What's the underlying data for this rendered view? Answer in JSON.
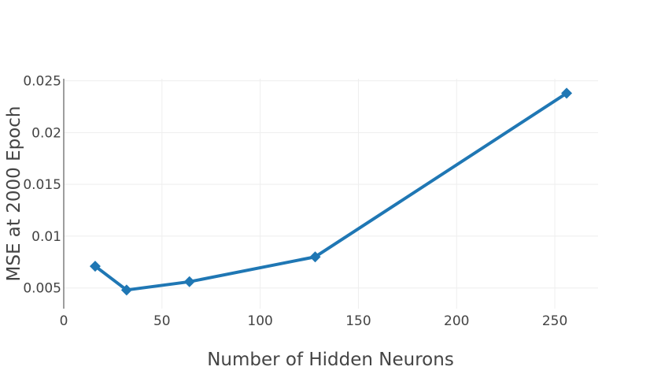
{
  "chart_data": {
    "type": "line",
    "title": "",
    "xlabel": "Number of Hidden Neurons",
    "ylabel": "MSE at 2000 Epoch",
    "xlim": [
      0,
      272
    ],
    "ylim": [
      0.003,
      0.0252
    ],
    "xticks": [
      0,
      50,
      100,
      150,
      200,
      250
    ],
    "xtick_labels": [
      "0",
      "50",
      "100",
      "150",
      "200",
      "250"
    ],
    "yticks": [
      0.005,
      0.01,
      0.015,
      0.02,
      0.025
    ],
    "ytick_labels": [
      "0.005",
      "0.01",
      "0.015",
      "0.02",
      "0.025"
    ],
    "grid": true,
    "series": [
      {
        "x": [
          16,
          32,
          64,
          128,
          256
        ],
        "y": [
          0.0071,
          0.0048,
          0.0056,
          0.008,
          0.0238
        ],
        "color": "#1f77b4",
        "marker": "diamond"
      }
    ]
  }
}
